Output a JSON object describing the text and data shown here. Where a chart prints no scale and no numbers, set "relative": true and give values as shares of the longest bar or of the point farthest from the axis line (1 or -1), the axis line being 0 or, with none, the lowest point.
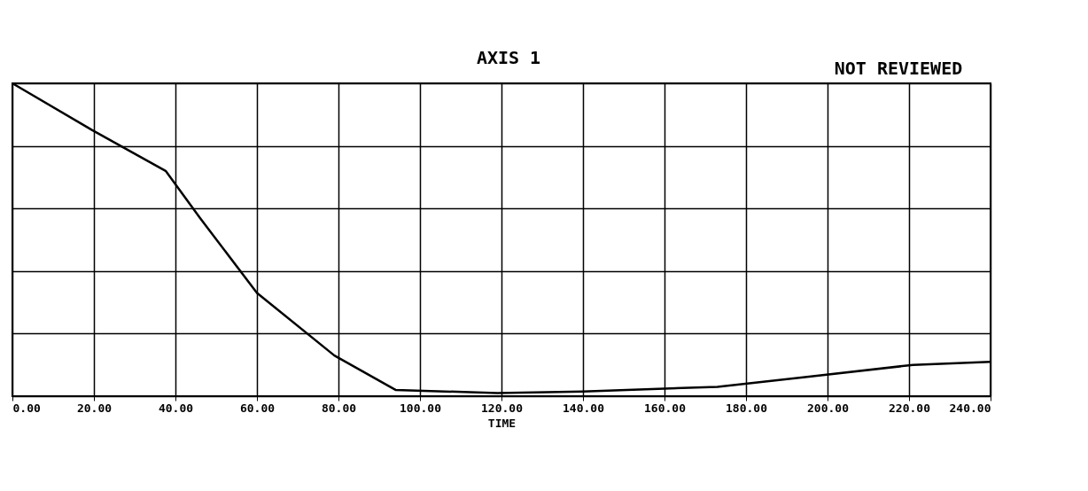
{
  "chart_data": {
    "type": "line",
    "xlabel": "TIME",
    "relative": true,
    "grid": true,
    "marker": "none",
    "line_style": "solid",
    "annotations": [
      "AXIS 1",
      "NOT REVIEWED"
    ],
    "xlim": [
      0,
      240
    ],
    "xticks": [
      {
        "value": 0,
        "label": "0.00"
      },
      {
        "value": 20,
        "label": "20.00"
      },
      {
        "value": 40,
        "label": "40.00"
      },
      {
        "value": 60,
        "label": "60.00"
      },
      {
        "value": 80,
        "label": "80.00"
      },
      {
        "value": 100,
        "label": "100.00"
      },
      {
        "value": 120,
        "label": "120.00"
      },
      {
        "value": 140,
        "label": "140.00"
      },
      {
        "value": 160,
        "label": "160.00"
      },
      {
        "value": 180,
        "label": "180.00"
      },
      {
        "value": 200,
        "label": "200.00"
      },
      {
        "value": 220,
        "label": "220.00"
      },
      {
        "value": 240,
        "label": "240.00"
      }
    ],
    "x": [
      0,
      19.6,
      37.6,
      46,
      60,
      79,
      94,
      119,
      140,
      173,
      194,
      221,
      240
    ],
    "series": [
      {
        "color": "#000000",
        "values": [
          1.0,
          0.85,
          0.72,
          0.57,
          0.33,
          0.13,
          0.02,
          0.01,
          0.015,
          0.03,
          0.06,
          0.1,
          0.11
        ]
      }
    ]
  }
}
